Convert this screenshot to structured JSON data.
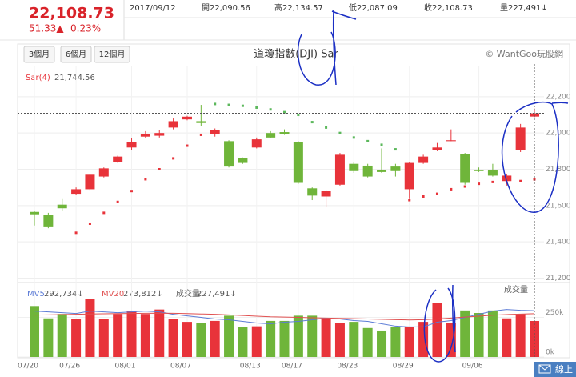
{
  "header": {
    "price": "22,108.73",
    "change": "51.33▲",
    "percent": "0.23%",
    "date": "2017/09/12",
    "open": "開22,090.56",
    "high": "高22,134.57",
    "low": "低22,087.09",
    "close": "收22,108.73",
    "volume": "量227,491↓"
  },
  "toolbar": {
    "buttons": [
      "3個月",
      "6個月",
      "12個月"
    ],
    "copyright": "© WantGoo玩股網"
  },
  "chat": "線上",
  "chart_data": {
    "type": "candlestick",
    "title": "道瓊指數(DJI) Sar",
    "categories": [
      "07/20",
      null,
      null,
      "07/26",
      null,
      null,
      null,
      "08/01",
      null,
      null,
      null,
      "08/07",
      null,
      null,
      null,
      null,
      "08/13",
      null,
      null,
      "08/17",
      null,
      null,
      null,
      "08/23",
      null,
      null,
      null,
      "08/29",
      null,
      null,
      null,
      null,
      "09/06",
      null,
      null,
      null,
      null
    ],
    "open": [
      21565,
      21550,
      21605,
      21665,
      21690,
      21760,
      21840,
      21920,
      21980,
      21985,
      22030,
      22075,
      22065,
      21995,
      21955,
      21860,
      21920,
      22000,
      22005,
      21950,
      21695,
      21650,
      21715,
      21830,
      21820,
      21795,
      21815,
      21690,
      21835,
      21905,
      21955,
      21885,
      21795,
      21795,
      21735,
      21905,
      22090.56
    ],
    "high": [
      21570,
      21560,
      21640,
      21700,
      21775,
      21810,
      21875,
      21970,
      22010,
      22015,
      22080,
      22095,
      22155,
      22025,
      21960,
      21865,
      21975,
      22010,
      22020,
      21955,
      21700,
      21685,
      21890,
      21840,
      21830,
      21915,
      21830,
      21840,
      21880,
      21945,
      22020,
      21890,
      21810,
      21830,
      21775,
      22050,
      22134.57
    ],
    "low": [
      21490,
      21475,
      21570,
      21660,
      21685,
      21755,
      21835,
      21905,
      21970,
      21975,
      22020,
      22070,
      22040,
      21980,
      21810,
      21830,
      21915,
      21970,
      21990,
      21720,
      21630,
      21590,
      21710,
      21780,
      21755,
      21780,
      21760,
      21640,
      21830,
      21900,
      21955,
      21715,
      21785,
      21760,
      21710,
      21895,
      22087.09
    ],
    "close": [
      21552,
      21485,
      21585,
      21690,
      21770,
      21805,
      21870,
      21950,
      21995,
      22000,
      22065,
      22090,
      22055,
      22015,
      21815,
      21835,
      21965,
      21975,
      21995,
      21725,
      21655,
      21680,
      21880,
      21790,
      21760,
      21785,
      21790,
      21835,
      21870,
      21920,
      21960,
      21725,
      21790,
      21765,
      21765,
      22030,
      22108.73
    ],
    "up_color": "#e8333a",
    "down_color": "#6fb53a",
    "ylim": [
      21180,
      22345
    ],
    "yticks": [
      {
        "value": 21200,
        "label": "21,200"
      },
      {
        "value": 21400,
        "label": "21,400"
      },
      {
        "value": 21600,
        "label": "21,600"
      },
      {
        "value": 21800,
        "label": "21,800"
      },
      {
        "value": 22000,
        "label": "22,000"
      },
      {
        "value": 22200,
        "label": "22,200"
      }
    ],
    "grid": true,
    "sar": {
      "label": "Sar(4)",
      "value_label": "21,744.56",
      "up_color": "#e8333a",
      "down_color": "#5cb85c",
      "values": [
        null,
        null,
        null,
        21450,
        21500,
        21560,
        21620,
        21680,
        21745,
        21800,
        21860,
        21930,
        21990,
        22160,
        22155,
        22150,
        22140,
        22130,
        22115,
        22100,
        22060,
        22030,
        22000,
        21975,
        21955,
        21935,
        21910,
        21630,
        21650,
        21665,
        21690,
        21705,
        21720,
        21730,
        21740,
        21735,
        21744.56
      ]
    },
    "volume": {
      "label": "成交量",
      "value_label": "227,491↓",
      "ylim": [
        0,
        450000
      ],
      "yticks": [
        {
          "value": 0,
          "label": "0k"
        },
        {
          "value": 250000,
          "label": "250k"
        }
      ],
      "values": [
        322000,
        244000,
        272000,
        239000,
        367000,
        239000,
        272000,
        289000,
        272000,
        300000,
        239000,
        222000,
        217000,
        228000,
        261000,
        189000,
        194000,
        228000,
        228000,
        261000,
        261000,
        239000,
        217000,
        222000,
        183000,
        167000,
        189000,
        189000,
        222000,
        339000,
        217000,
        294000,
        278000,
        294000,
        244000,
        272000,
        227491
      ]
    },
    "series": [
      {
        "name": "MV5",
        "value_label": "292,734↓",
        "color": "#5b7bd6",
        "values": [
          290000,
          285000,
          280000,
          275000,
          290000,
          285000,
          280000,
          285000,
          290000,
          285000,
          270000,
          260000,
          250000,
          240000,
          235000,
          225000,
          215000,
          210000,
          220000,
          225000,
          235000,
          245000,
          240000,
          230000,
          225000,
          210000,
          195000,
          190000,
          190000,
          220000,
          230000,
          250000,
          270000,
          290000,
          300000,
          295000,
          292734
        ]
      },
      {
        "name": "MV20",
        "value_label": "273,812↓",
        "color": "#e05050",
        "values": [
          265000,
          266000,
          268000,
          270000,
          272000,
          273000,
          274000,
          275000,
          276000,
          277000,
          276000,
          274000,
          272000,
          270000,
          266000,
          262000,
          258000,
          254000,
          252000,
          250000,
          248000,
          246000,
          244000,
          242000,
          240000,
          238000,
          236000,
          234000,
          236000,
          240000,
          246000,
          252000,
          258000,
          264000,
          268000,
          271000,
          273812
        ]
      }
    ]
  }
}
